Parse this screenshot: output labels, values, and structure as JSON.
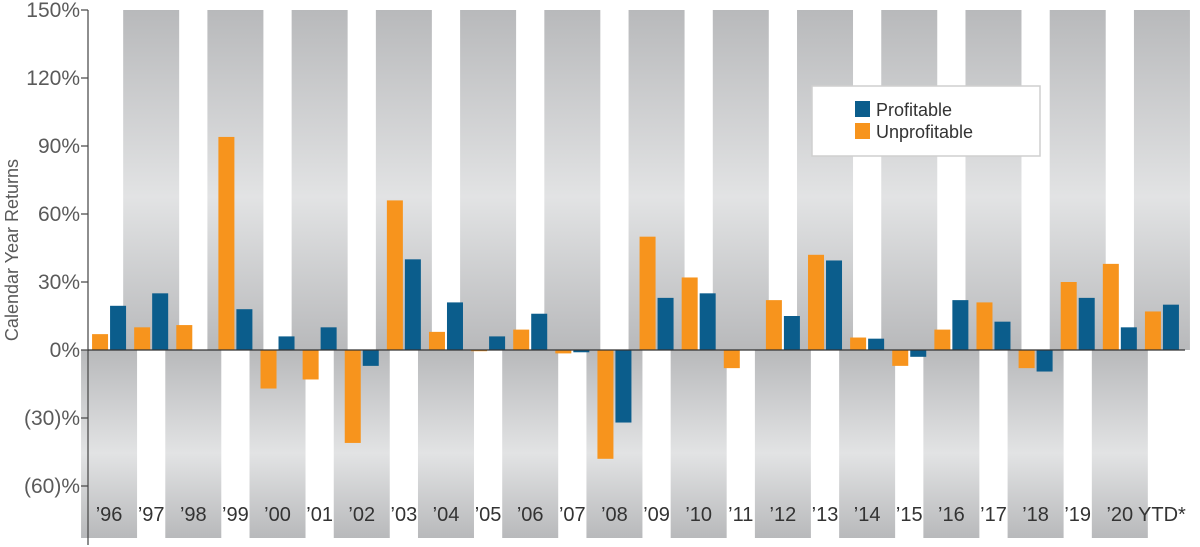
{
  "chart_data": {
    "type": "bar",
    "ylabel": "Calendar Year Returns",
    "y_unit": "%",
    "ylim": [
      -60,
      150
    ],
    "yticks": [
      -60,
      -30,
      0,
      30,
      60,
      90,
      120,
      150
    ],
    "ytick_labels": [
      "(60)%",
      "(30)%",
      "0%",
      "30%",
      "60%",
      "90%",
      "120%",
      "150%"
    ],
    "categories": [
      "’96",
      "’97",
      "’98",
      "’99",
      "’00",
      "’01",
      "’02",
      "’03",
      "’04",
      "’05",
      "’06",
      "’07",
      "’08",
      "’09",
      "’10",
      "’11",
      "’12",
      "’13",
      "’14",
      "’15",
      "’16",
      "’17",
      "’18",
      "’19",
      "’20",
      "YTD*"
    ],
    "series": [
      {
        "name": "Unprofitable",
        "color": "#f7941d",
        "values": [
          7,
          10,
          11,
          94,
          -17,
          -13,
          -41,
          66,
          8,
          -0.5,
          9,
          -1.5,
          -48,
          50,
          32,
          -8,
          22,
          42,
          5.5,
          -7,
          9,
          21,
          -8,
          30,
          38,
          17
        ]
      },
      {
        "name": "Profitable",
        "color": "#0b5d8c",
        "values": [
          19.5,
          25,
          0,
          18,
          6,
          10,
          -7,
          40,
          21,
          6,
          16,
          -1,
          -32,
          23,
          25,
          0,
          15,
          39.5,
          5,
          -3,
          22,
          12.5,
          -9.5,
          23,
          10,
          20
        ]
      }
    ],
    "legend": {
      "position": "top-right",
      "entries": [
        "Profitable",
        "Unprofitable"
      ]
    },
    "grid": false,
    "background_stripes": true
  }
}
